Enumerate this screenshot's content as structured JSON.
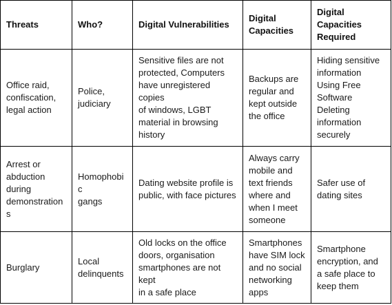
{
  "table": {
    "headers": [
      [
        "Threats"
      ],
      [
        "Who?"
      ],
      [
        "Digital Vulnerabilities"
      ],
      [
        "Digital",
        "Capacities"
      ],
      [
        "Digital",
        "Capacities",
        "Required"
      ]
    ],
    "rows": [
      [
        [
          "Office raid,",
          "confiscation,",
          "legal action"
        ],
        [
          "Police,",
          "judiciary"
        ],
        [
          "Sensitive files are not",
          "protected, Computers",
          "have unregistered copies",
          "of windows, LGBT",
          "material in browsing",
          "history"
        ],
        [
          "Backups are",
          "regular and",
          "kept outside",
          "the office"
        ],
        [
          "Hiding sensitive",
          "information",
          "Using Free",
          "Software",
          "Deleting",
          "information",
          "securely"
        ]
      ],
      [
        [
          "Arrest or",
          "abduction",
          "during",
          "demonstrations"
        ],
        [
          "Homophobic",
          "gangs"
        ],
        [
          "Dating website profile is",
          "public, with face pictures"
        ],
        [
          "Always carry",
          "mobile and",
          "text friends",
          "where and",
          "when I meet",
          "someone"
        ],
        [
          "Safer use of",
          "dating sites"
        ]
      ],
      [
        [
          "Burglary"
        ],
        [
          "Local",
          "delinquents"
        ],
        [
          "Old locks on the office",
          "doors, organisation",
          "smartphones are not kept",
          "in a safe place"
        ],
        [
          "Smartphones",
          "have SIM lock",
          "and no social",
          "networking",
          "apps"
        ],
        [
          "Smartphone",
          "encryption, and",
          "a safe place to",
          "keep them"
        ]
      ]
    ]
  }
}
